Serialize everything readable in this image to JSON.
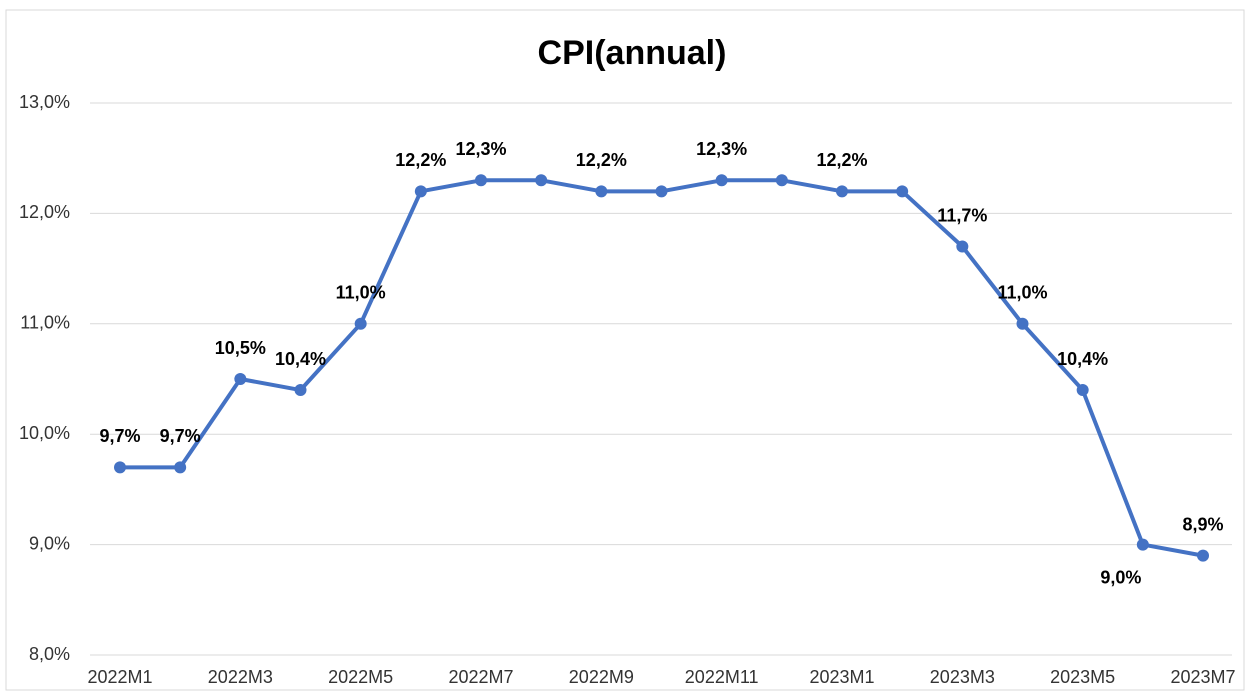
{
  "chart_data": {
    "type": "line",
    "title": "CPI(annual)",
    "categories": [
      "2022M1",
      null,
      "2022M3",
      null,
      "2022M5",
      null,
      "2022M7",
      null,
      "2022M9",
      null,
      "2022M11",
      null,
      "2023M1",
      null,
      "2023M3",
      null,
      "2023M5",
      null,
      "2023M7"
    ],
    "series": [
      {
        "name": "CPI",
        "color": "#4472c4",
        "values": [
          9.7,
          9.7,
          10.5,
          10.4,
          11.0,
          12.2,
          12.3,
          12.3,
          12.2,
          12.2,
          12.3,
          12.3,
          12.2,
          12.2,
          11.7,
          11.0,
          10.4,
          9.0,
          8.9
        ],
        "value_labels": [
          "9,7%",
          "9,7%",
          "10,5%",
          "10,4%",
          "11,0%",
          "12,2%",
          "12,3%",
          null,
          "12,2%",
          null,
          "12,3%",
          null,
          "12,2%",
          null,
          "11,7%",
          "11,0%",
          "10,4%",
          "9,0%",
          "8,9%"
        ]
      }
    ],
    "ylim": [
      8,
      13
    ],
    "yticks": [
      {
        "value": 8,
        "label": "8,0%"
      },
      {
        "value": 9,
        "label": "9,0%"
      },
      {
        "value": 10,
        "label": "10,0%"
      },
      {
        "value": 11,
        "label": "11,0%"
      },
      {
        "value": 12,
        "label": "12,0%"
      },
      {
        "value": 13,
        "label": "13,0%"
      }
    ],
    "grid": true
  }
}
